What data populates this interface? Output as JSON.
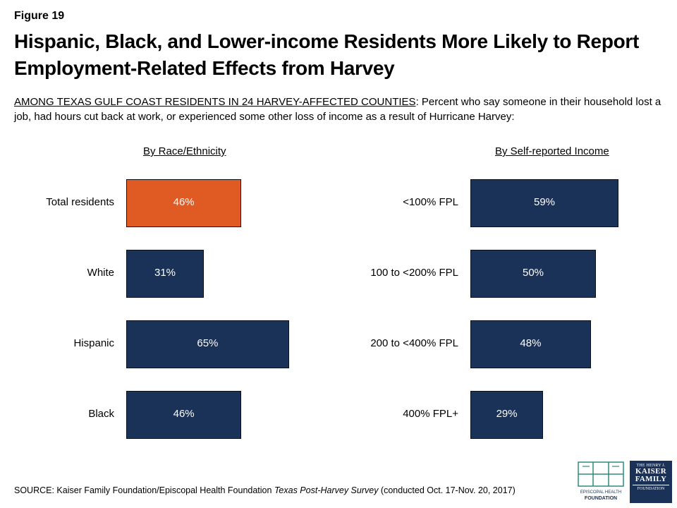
{
  "figure_label": "Figure 19",
  "title": "Hispanic, Black, and Lower-income Residents More Likely to Report Employment-Related Effects from Harvey",
  "subtitle_caps": "AMONG TEXAS GULF COAST RESIDENTS IN 24 HARVEY-AFFECTED COUNTIES",
  "subtitle_rest": ": Percent who say someone in their household lost a job, had hours cut back at work, or experienced some other loss of income as a result of Hurricane Harvey:",
  "source": {
    "prefix": "SOURCE: Kaiser Family Foundation/Episcopal Health Foundation ",
    "survey": "Texas Post-Harvey Survey",
    "suffix": " (conducted Oct. 17-Nov. 20, 2017)"
  },
  "logos": {
    "ehf_text_1": "EPISCOPAL HEALTH",
    "ehf_text_2": "FOUNDATION",
    "kff_small": "THE HENRY J.",
    "kff_line1": "KAISER",
    "kff_line2": "FAMILY",
    "kff_found": "FOUNDATION"
  },
  "colors": {
    "highlight": "#e05a24",
    "bar": "#1a3158",
    "text": "#000000"
  },
  "chart_data": [
    {
      "type": "bar",
      "orientation": "horizontal",
      "panel_title": "By Race/Ethnicity",
      "categories": [
        "Total residents",
        "White",
        "Hispanic",
        "Black"
      ],
      "values": [
        46,
        31,
        65,
        46
      ],
      "labels": [
        "46%",
        "31%",
        "65%",
        "46%"
      ],
      "highlight_index": 0
    },
    {
      "type": "bar",
      "orientation": "horizontal",
      "panel_title": "By Self-reported Income",
      "categories": [
        "<100% FPL",
        "100 to <200% FPL",
        "200 to <400% FPL",
        "400% FPL+"
      ],
      "values": [
        59,
        50,
        48,
        29
      ],
      "labels": [
        "59%",
        "50%",
        "48%",
        "29%"
      ],
      "highlight_index": -1
    }
  ]
}
